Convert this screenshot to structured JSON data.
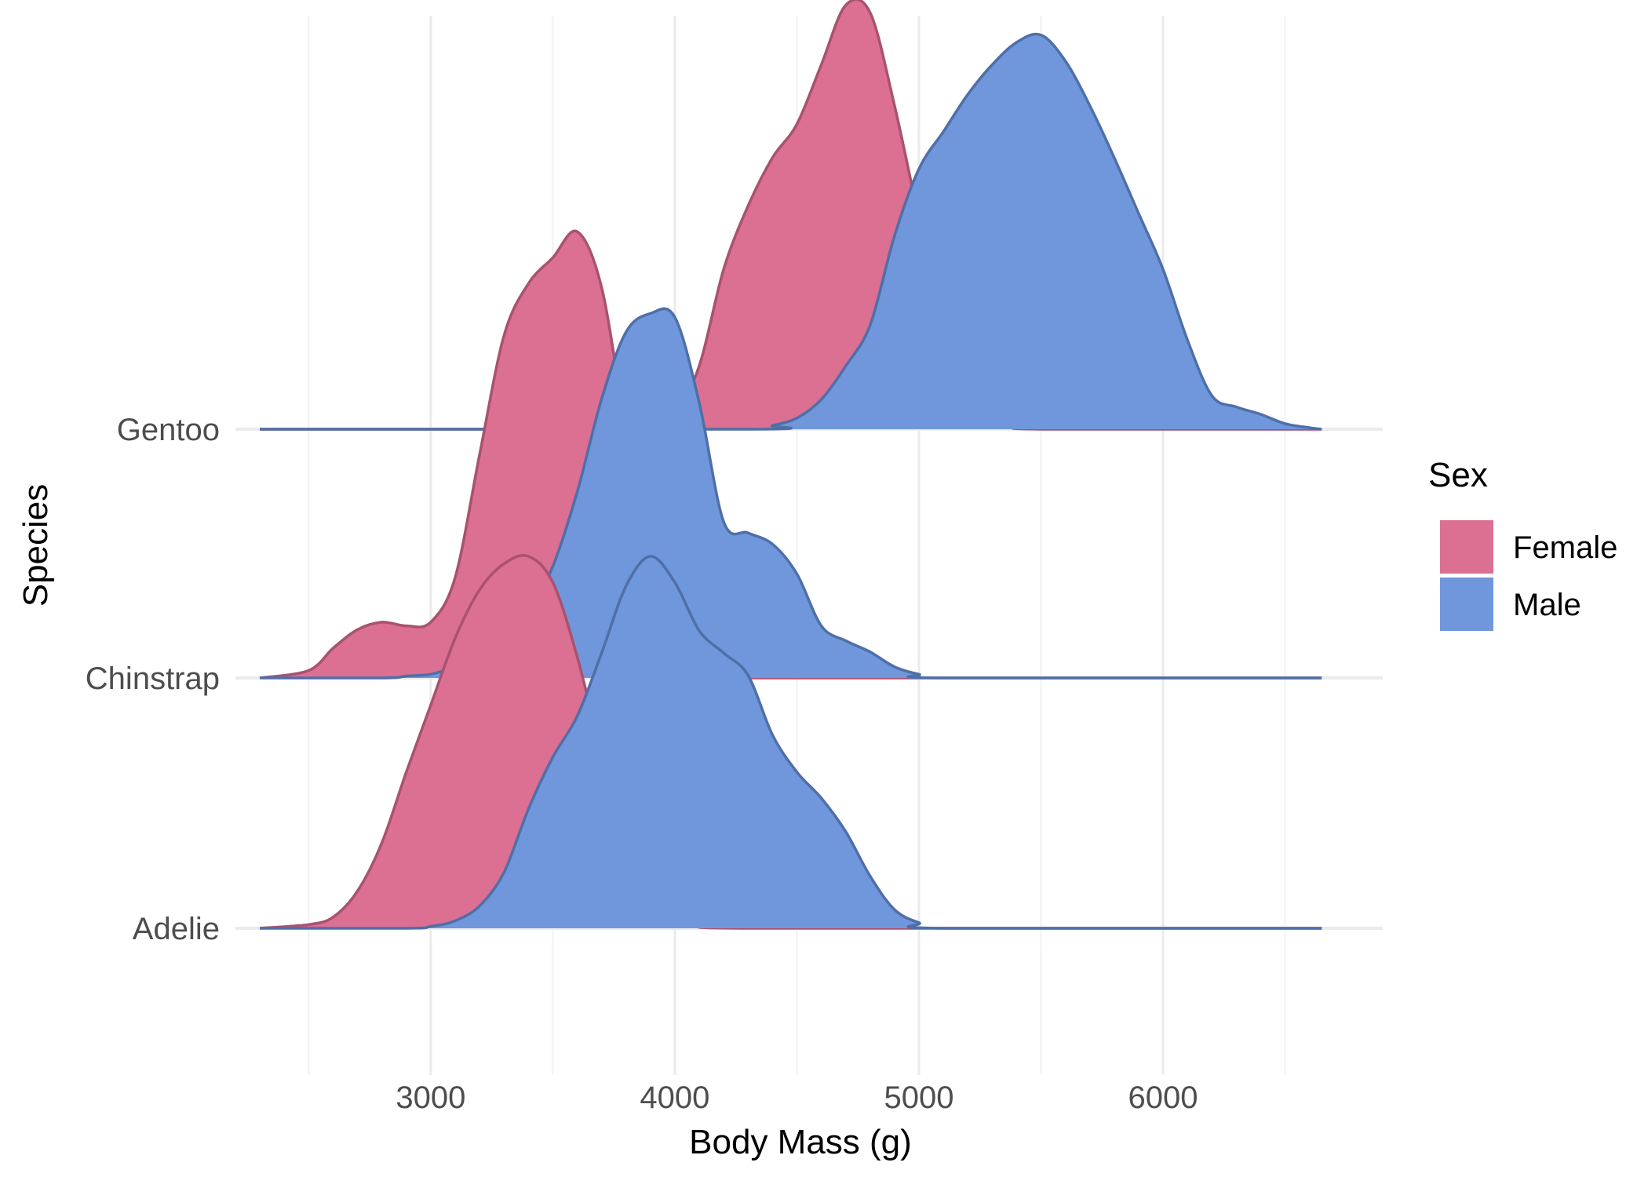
{
  "chart_data": {
    "type": "ridgeline",
    "xlabel": "Body Mass (g)",
    "ylabel": "Species",
    "x_ticks": [
      3000,
      4000,
      5000,
      6000
    ],
    "x_minor_gridlines": [
      2500,
      3500,
      4500,
      5500,
      6500
    ],
    "xlim": [
      2200,
      6900
    ],
    "x_range_drawn": [
      2300,
      6650
    ],
    "grid": true,
    "categories": [
      "Adelie",
      "Chinstrap",
      "Gentoo"
    ],
    "legend": {
      "title": "Sex",
      "position": "right",
      "entries": [
        {
          "name": "Female",
          "color": "#db7093"
        },
        {
          "name": "Male",
          "color": "#7097db"
        }
      ]
    },
    "series": [
      {
        "species": "Adelie",
        "sex": "Female",
        "color": "#db7093",
        "outline": "#a9526f",
        "points": [
          [
            2300,
            0
          ],
          [
            2500,
            0.01
          ],
          [
            2600,
            0.03
          ],
          [
            2700,
            0.1
          ],
          [
            2800,
            0.23
          ],
          [
            2900,
            0.42
          ],
          [
            3000,
            0.6
          ],
          [
            3100,
            0.78
          ],
          [
            3200,
            0.91
          ],
          [
            3300,
            0.98
          ],
          [
            3400,
            1.0
          ],
          [
            3500,
            0.93
          ],
          [
            3600,
            0.73
          ],
          [
            3700,
            0.47
          ],
          [
            3800,
            0.25
          ],
          [
            3900,
            0.11
          ],
          [
            4000,
            0.05
          ],
          [
            4100,
            0.02
          ],
          [
            4200,
            0.01
          ],
          [
            4300,
            0
          ],
          [
            6650,
            0
          ]
        ]
      },
      {
        "species": "Adelie",
        "sex": "Male",
        "color": "#7097db",
        "outline": "#4f6fa8",
        "points": [
          [
            2300,
            0
          ],
          [
            2900,
            0
          ],
          [
            3000,
            0.005
          ],
          [
            3100,
            0.02
          ],
          [
            3200,
            0.06
          ],
          [
            3300,
            0.15
          ],
          [
            3400,
            0.32
          ],
          [
            3500,
            0.46
          ],
          [
            3600,
            0.57
          ],
          [
            3700,
            0.74
          ],
          [
            3800,
            0.92
          ],
          [
            3900,
            1.0
          ],
          [
            4000,
            0.93
          ],
          [
            4100,
            0.8
          ],
          [
            4200,
            0.74
          ],
          [
            4300,
            0.68
          ],
          [
            4400,
            0.52
          ],
          [
            4500,
            0.42
          ],
          [
            4600,
            0.35
          ],
          [
            4700,
            0.26
          ],
          [
            4800,
            0.14
          ],
          [
            4900,
            0.05
          ],
          [
            5000,
            0.015
          ],
          [
            5100,
            0
          ],
          [
            6650,
            0
          ]
        ]
      },
      {
        "species": "Chinstrap",
        "sex": "Female",
        "color": "#db7093",
        "outline": "#a9526f",
        "points": [
          [
            2300,
            0
          ],
          [
            2500,
            0.02
          ],
          [
            2600,
            0.08
          ],
          [
            2700,
            0.13
          ],
          [
            2800,
            0.15
          ],
          [
            2900,
            0.14
          ],
          [
            3000,
            0.15
          ],
          [
            3100,
            0.27
          ],
          [
            3200,
            0.6
          ],
          [
            3300,
            0.92
          ],
          [
            3400,
            1.06
          ],
          [
            3500,
            1.13
          ],
          [
            3600,
            1.2
          ],
          [
            3700,
            1.05
          ],
          [
            3800,
            0.67
          ],
          [
            3900,
            0.37
          ],
          [
            4000,
            0.16
          ],
          [
            4100,
            0.05
          ],
          [
            4200,
            0.01
          ],
          [
            4400,
            0
          ],
          [
            6650,
            0
          ]
        ]
      },
      {
        "species": "Chinstrap",
        "sex": "Male",
        "color": "#7097db",
        "outline": "#4f6fa8",
        "points": [
          [
            2300,
            0
          ],
          [
            2800,
            0
          ],
          [
            2900,
            0.005
          ],
          [
            3000,
            0.01
          ],
          [
            3100,
            0.03
          ],
          [
            3200,
            0.05
          ],
          [
            3300,
            0.1
          ],
          [
            3400,
            0.18
          ],
          [
            3500,
            0.3
          ],
          [
            3600,
            0.5
          ],
          [
            3700,
            0.75
          ],
          [
            3800,
            0.93
          ],
          [
            3900,
            0.98
          ],
          [
            4000,
            0.97
          ],
          [
            4100,
            0.74
          ],
          [
            4200,
            0.42
          ],
          [
            4300,
            0.39
          ],
          [
            4400,
            0.36
          ],
          [
            4500,
            0.28
          ],
          [
            4600,
            0.14
          ],
          [
            4700,
            0.1
          ],
          [
            4800,
            0.07
          ],
          [
            4900,
            0.03
          ],
          [
            5000,
            0.01
          ],
          [
            5100,
            0
          ],
          [
            6650,
            0
          ]
        ]
      },
      {
        "species": "Gentoo",
        "sex": "Female",
        "color": "#db7093",
        "outline": "#a9526f",
        "points": [
          [
            2300,
            0
          ],
          [
            3900,
            0
          ],
          [
            4000,
            0.04
          ],
          [
            4100,
            0.17
          ],
          [
            4200,
            0.43
          ],
          [
            4300,
            0.6
          ],
          [
            4400,
            0.73
          ],
          [
            4500,
            0.82
          ],
          [
            4600,
            0.98
          ],
          [
            4700,
            1.14
          ],
          [
            4800,
            1.12
          ],
          [
            4900,
            0.87
          ],
          [
            5000,
            0.57
          ],
          [
            5100,
            0.31
          ],
          [
            5200,
            0.13
          ],
          [
            5300,
            0.04
          ],
          [
            5400,
            0.01
          ],
          [
            5500,
            0
          ],
          [
            6650,
            0
          ]
        ]
      },
      {
        "species": "Gentoo",
        "sex": "Male",
        "color": "#7097db",
        "outline": "#4f6fa8",
        "points": [
          [
            2300,
            0
          ],
          [
            4300,
            0
          ],
          [
            4400,
            0.01
          ],
          [
            4500,
            0.03
          ],
          [
            4600,
            0.08
          ],
          [
            4700,
            0.17
          ],
          [
            4800,
            0.28
          ],
          [
            4900,
            0.52
          ],
          [
            5000,
            0.7
          ],
          [
            5100,
            0.8
          ],
          [
            5200,
            0.9
          ],
          [
            5300,
            0.98
          ],
          [
            5400,
            1.04
          ],
          [
            5500,
            1.06
          ],
          [
            5600,
            0.99
          ],
          [
            5700,
            0.87
          ],
          [
            5800,
            0.73
          ],
          [
            5900,
            0.58
          ],
          [
            6000,
            0.43
          ],
          [
            6100,
            0.24
          ],
          [
            6200,
            0.09
          ],
          [
            6300,
            0.06
          ],
          [
            6400,
            0.04
          ],
          [
            6500,
            0.015
          ],
          [
            6600,
            0.004
          ],
          [
            6650,
            0
          ]
        ]
      }
    ]
  }
}
